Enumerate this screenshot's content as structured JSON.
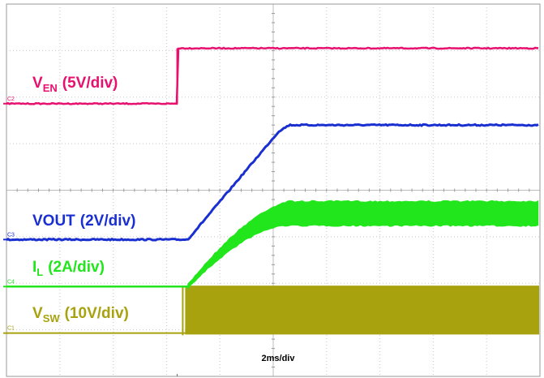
{
  "chart_data": {
    "type": "line",
    "title": "",
    "timebase": "2ms/div",
    "grid": true,
    "divisions": {
      "x": 10,
      "y": 8
    },
    "series": [
      {
        "name": "V",
        "sub": "EN",
        "scale": "(5V/div)",
        "channel": "C2",
        "color": "#e8106e",
        "level_before_div": 5.86,
        "level_after_div": 7.05,
        "step_at_div": 3.2
      },
      {
        "name": "VOUT",
        "sub": "",
        "scale": "(2V/div)",
        "channel": "C3",
        "color": "#1a2fd0",
        "level_before_div": 2.94,
        "ramp_start_div": 3.4,
        "ramp_end_div": 5.3,
        "level_after_div": 5.4
      },
      {
        "name": "I",
        "sub": "L",
        "scale": "(2A/div)",
        "channel": "C4",
        "color": "#22e61c",
        "level_before_div": 1.93,
        "ramp_start_div": 3.4,
        "ramp_end_div": 5.3,
        "level_after_div": 3.5
      },
      {
        "name": "V",
        "sub": "SW",
        "scale": "(10V/div)",
        "channel": "C1",
        "color": "#a7a20e",
        "level_before_div": 0.93,
        "switch_start_div": 3.35,
        "switch_low_div": 0.9,
        "switch_high_div": 1.95
      }
    ]
  }
}
